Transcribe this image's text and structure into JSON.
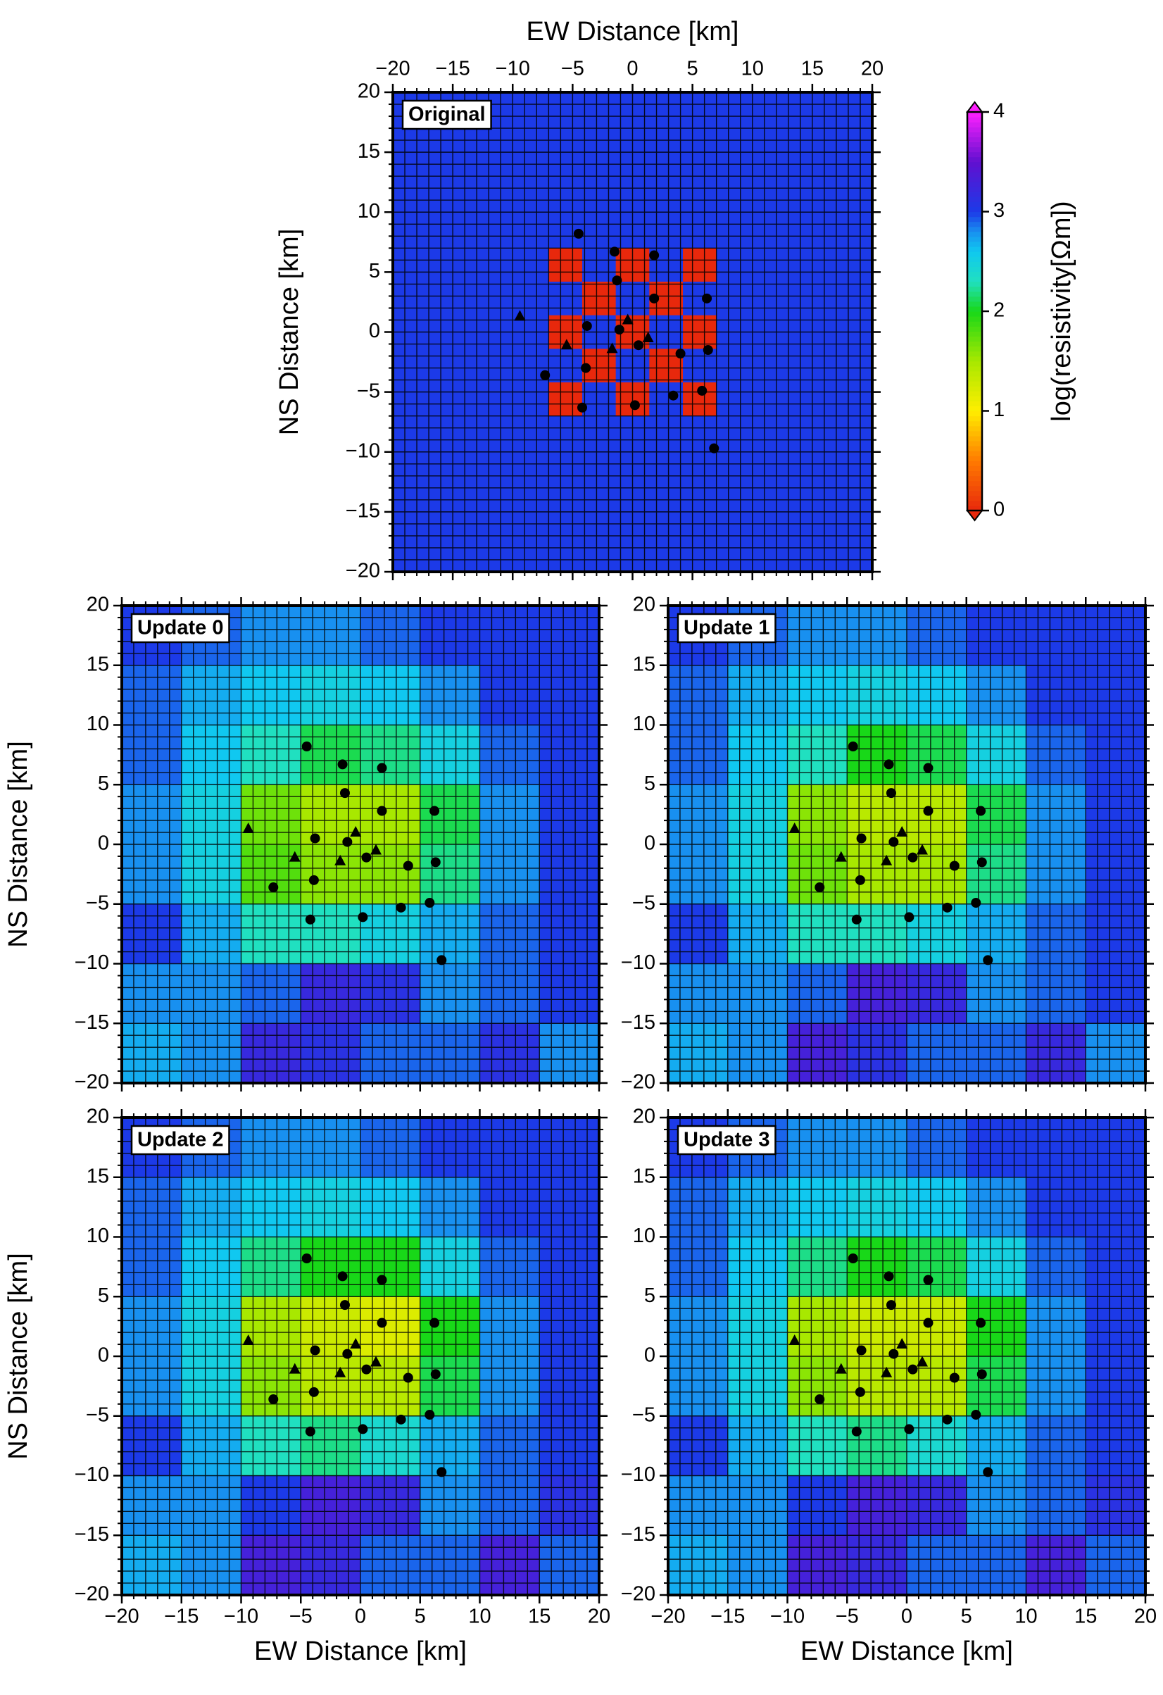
{
  "chart_data": [
    {
      "type": "heatmap",
      "title": "Original",
      "xlabel": "EW Distance [km]",
      "ylabel": "NS Distance [km]",
      "xlabel_side": "top",
      "xtick_labels": "top",
      "xlim": [
        -20,
        20
      ],
      "ylim": [
        -20,
        20
      ],
      "xticks": [
        {
          "value": -20,
          "label": "−20"
        },
        {
          "value": -15,
          "label": "−15"
        },
        {
          "value": -10,
          "label": "−10"
        },
        {
          "value": -5,
          "label": "−5"
        },
        0,
        5,
        10,
        15,
        20
      ],
      "yticks": [
        {
          "value": -20,
          "label": "−20"
        },
        {
          "value": -15,
          "label": "−15"
        },
        {
          "value": -10,
          "label": "−10"
        },
        {
          "value": -5,
          "label": "−5"
        },
        0,
        5,
        10,
        15,
        20
      ],
      "xbins": [
        -20,
        -7,
        -4.2,
        -1.4,
        1.4,
        4.2,
        7,
        20
      ],
      "ybins": [
        20,
        7,
        4.2,
        1.4,
        -1.4,
        -4.2,
        -7,
        -20
      ],
      "values": [
        [
          3,
          3,
          3,
          3,
          3,
          3,
          3
        ],
        [
          3,
          0,
          3,
          0,
          3,
          0,
          3
        ],
        [
          3,
          3,
          0,
          3,
          0,
          3,
          3
        ],
        [
          3,
          0,
          3,
          0,
          3,
          0,
          3
        ],
        [
          3,
          3,
          0,
          3,
          0,
          3,
          3
        ],
        [
          3,
          0,
          3,
          0,
          3,
          0,
          3
        ],
        [
          3,
          3,
          3,
          3,
          3,
          3,
          3
        ]
      ],
      "stations": {
        "circles": {
          "x": [
            -4.5,
            -1.5,
            1.8,
            -1.3,
            1.8,
            6.2,
            -3.8,
            -1.1,
            0.5,
            4.0,
            6.3,
            -3.9,
            -7.3,
            3.4,
            5.8,
            -4.2,
            0.2,
            6.8
          ],
          "y": [
            8.2,
            6.7,
            6.4,
            4.3,
            2.8,
            2.8,
            0.5,
            0.2,
            -1.1,
            -1.8,
            -1.5,
            -3.0,
            -3.6,
            -5.3,
            -4.9,
            -6.3,
            -6.1,
            -9.7
          ]
        },
        "triangles": {
          "x": [
            -9.4,
            -5.5,
            -1.7,
            -0.4,
            1.3
          ],
          "y": [
            1.3,
            -1.1,
            -1.4,
            1.0,
            -0.5
          ]
        }
      },
      "colorbar": {
        "label": "log(resistivity[Ωm])",
        "lim": [
          0,
          4
        ],
        "ticks": [
          0,
          1,
          2,
          3,
          4
        ],
        "stops": [
          0,
          0.5,
          1,
          1.5,
          2,
          2.3,
          2.6,
          2.8,
          3,
          3.5,
          4
        ],
        "colors": [
          "#e8280c",
          "#ff7a00",
          "#ffee00",
          "#a8e800",
          "#18d818",
          "#20e0c0",
          "#10c8f0",
          "#1890f0",
          "#1c3ae8",
          "#6010d0",
          "#ff20ff"
        ]
      }
    },
    {
      "type": "heatmap",
      "title": "Update 0",
      "ylabel": "NS Distance [km]",
      "xlabel_side": "none",
      "xtick_labels": "none",
      "xlim": [
        -20,
        20
      ],
      "ylim": [
        -20,
        20
      ],
      "xticks": [
        -20,
        -15,
        -10,
        -5,
        0,
        5,
        10,
        15,
        20
      ],
      "yticks": [
        {
          "value": -20,
          "label": "−20"
        },
        {
          "value": -15,
          "label": "−15"
        },
        {
          "value": -10,
          "label": "−10"
        },
        {
          "value": -5,
          "label": "−5"
        },
        0,
        5,
        10,
        15,
        20
      ],
      "xbins": [
        -20,
        -15,
        -10,
        -5,
        0,
        5,
        10,
        15,
        20
      ],
      "ybins": [
        20,
        15,
        10,
        5,
        0,
        -5,
        -10,
        -15,
        -20
      ],
      "values": [
        [
          3.0,
          2.9,
          2.8,
          2.8,
          2.9,
          3.0,
          3.0,
          3.0
        ],
        [
          2.9,
          2.7,
          2.6,
          2.5,
          2.6,
          2.8,
          3.0,
          3.0
        ],
        [
          2.9,
          2.6,
          2.3,
          2.1,
          2.2,
          2.5,
          2.9,
          3.0
        ],
        [
          2.8,
          2.5,
          1.7,
          1.5,
          1.5,
          2.1,
          2.8,
          3.0
        ],
        [
          2.8,
          2.5,
          1.8,
          1.6,
          1.6,
          2.2,
          2.8,
          3.0
        ],
        [
          3.0,
          2.7,
          2.3,
          2.3,
          2.5,
          2.7,
          2.9,
          3.0
        ],
        [
          2.8,
          2.8,
          2.9,
          3.2,
          3.1,
          2.8,
          2.9,
          3.0
        ],
        [
          2.7,
          2.8,
          3.2,
          3.1,
          2.9,
          2.9,
          3.1,
          2.8
        ]
      ],
      "stations": {
        "circles": {
          "x": [
            -4.5,
            -1.5,
            1.8,
            -1.3,
            1.8,
            6.2,
            -3.8,
            -1.1,
            0.5,
            4.0,
            6.3,
            -3.9,
            -7.3,
            3.4,
            5.8,
            -4.2,
            0.2,
            6.8
          ],
          "y": [
            8.2,
            6.7,
            6.4,
            4.3,
            2.8,
            2.8,
            0.5,
            0.2,
            -1.1,
            -1.8,
            -1.5,
            -3.0,
            -3.6,
            -5.3,
            -4.9,
            -6.3,
            -6.1,
            -9.7
          ]
        },
        "triangles": {
          "x": [
            -9.4,
            -5.5,
            -1.7,
            -0.4,
            1.3
          ],
          "y": [
            1.3,
            -1.1,
            -1.4,
            1.0,
            -0.5
          ]
        }
      }
    },
    {
      "type": "heatmap",
      "title": "Update 1",
      "xlabel_side": "none",
      "xtick_labels": "none",
      "xlim": [
        -20,
        20
      ],
      "ylim": [
        -20,
        20
      ],
      "xticks": [
        -20,
        -15,
        -10,
        -5,
        0,
        5,
        10,
        15,
        20
      ],
      "yticks": [
        {
          "value": -20,
          "label": "−20"
        },
        {
          "value": -15,
          "label": "−15"
        },
        {
          "value": -10,
          "label": "−10"
        },
        {
          "value": -5,
          "label": "−5"
        },
        0,
        5,
        10,
        15,
        20
      ],
      "xbins": [
        -20,
        -15,
        -10,
        -5,
        0,
        5,
        10,
        15,
        20
      ],
      "ybins": [
        20,
        15,
        10,
        5,
        0,
        -5,
        -10,
        -15,
        -20
      ],
      "values": [
        [
          3.0,
          2.9,
          2.8,
          2.8,
          2.9,
          3.0,
          3.0,
          3.0
        ],
        [
          2.9,
          2.7,
          2.6,
          2.5,
          2.6,
          2.8,
          3.0,
          3.0
        ],
        [
          2.9,
          2.6,
          2.3,
          2.0,
          2.1,
          2.5,
          2.9,
          3.0
        ],
        [
          2.8,
          2.5,
          1.6,
          1.4,
          1.4,
          2.1,
          2.8,
          3.0
        ],
        [
          2.8,
          2.5,
          1.7,
          1.5,
          1.5,
          2.2,
          2.8,
          3.0
        ],
        [
          3.0,
          2.7,
          2.3,
          2.3,
          2.5,
          2.7,
          2.9,
          3.0
        ],
        [
          2.8,
          2.8,
          2.9,
          3.3,
          3.2,
          2.8,
          2.9,
          3.0
        ],
        [
          2.7,
          2.8,
          3.3,
          3.1,
          2.9,
          2.9,
          3.2,
          2.8
        ]
      ],
      "stations": {
        "circles": {
          "x": [
            -4.5,
            -1.5,
            1.8,
            -1.3,
            1.8,
            6.2,
            -3.8,
            -1.1,
            0.5,
            4.0,
            6.3,
            -3.9,
            -7.3,
            3.4,
            5.8,
            -4.2,
            0.2,
            6.8
          ],
          "y": [
            8.2,
            6.7,
            6.4,
            4.3,
            2.8,
            2.8,
            0.5,
            0.2,
            -1.1,
            -1.8,
            -1.5,
            -3.0,
            -3.6,
            -5.3,
            -4.9,
            -6.3,
            -6.1,
            -9.7
          ]
        },
        "triangles": {
          "x": [
            -9.4,
            -5.5,
            -1.7,
            -0.4,
            1.3
          ],
          "y": [
            1.3,
            -1.1,
            -1.4,
            1.0,
            -0.5
          ]
        }
      }
    },
    {
      "type": "heatmap",
      "title": "Update 2",
      "xlabel": "EW Distance [km]",
      "ylabel": "NS Distance [km]",
      "xlabel_side": "bottom",
      "xtick_labels": "bottom",
      "xlim": [
        -20,
        20
      ],
      "ylim": [
        -20,
        20
      ],
      "xticks": [
        {
          "value": -20,
          "label": "−20"
        },
        {
          "value": -15,
          "label": "−15"
        },
        {
          "value": -10,
          "label": "−10"
        },
        {
          "value": -5,
          "label": "−5"
        },
        0,
        5,
        10,
        15,
        20
      ],
      "yticks": [
        {
          "value": -20,
          "label": "−20"
        },
        {
          "value": -15,
          "label": "−15"
        },
        {
          "value": -10,
          "label": "−10"
        },
        {
          "value": -5,
          "label": "−5"
        },
        0,
        5,
        10,
        15,
        20
      ],
      "xbins": [
        -20,
        -15,
        -10,
        -5,
        0,
        5,
        10,
        15,
        20
      ],
      "ybins": [
        20,
        15,
        10,
        5,
        0,
        -5,
        -10,
        -15,
        -20
      ],
      "values": [
        [
          3.0,
          2.9,
          2.8,
          2.8,
          2.9,
          3.0,
          3.0,
          3.0
        ],
        [
          2.9,
          2.7,
          2.6,
          2.5,
          2.6,
          2.8,
          3.0,
          3.0
        ],
        [
          2.9,
          2.6,
          2.2,
          2.0,
          2.0,
          2.5,
          2.9,
          3.0
        ],
        [
          2.8,
          2.5,
          1.5,
          1.3,
          1.2,
          2.0,
          2.8,
          3.0
        ],
        [
          2.8,
          2.5,
          1.6,
          1.4,
          1.4,
          2.1,
          2.8,
          3.0
        ],
        [
          3.0,
          2.7,
          2.3,
          2.2,
          2.4,
          2.7,
          2.9,
          3.0
        ],
        [
          2.8,
          2.8,
          3.0,
          3.3,
          3.2,
          2.8,
          2.9,
          3.1
        ],
        [
          2.7,
          2.8,
          3.3,
          3.2,
          2.9,
          2.9,
          3.3,
          2.9
        ]
      ],
      "stations": {
        "circles": {
          "x": [
            -4.5,
            -1.5,
            1.8,
            -1.3,
            1.8,
            6.2,
            -3.8,
            -1.1,
            0.5,
            4.0,
            6.3,
            -3.9,
            -7.3,
            3.4,
            5.8,
            -4.2,
            0.2,
            6.8
          ],
          "y": [
            8.2,
            6.7,
            6.4,
            4.3,
            2.8,
            2.8,
            0.5,
            0.2,
            -1.1,
            -1.8,
            -1.5,
            -3.0,
            -3.6,
            -5.3,
            -4.9,
            -6.3,
            -6.1,
            -9.7
          ]
        },
        "triangles": {
          "x": [
            -9.4,
            -5.5,
            -1.7,
            -0.4,
            1.3
          ],
          "y": [
            1.3,
            -1.1,
            -1.4,
            1.0,
            -0.5
          ]
        }
      }
    },
    {
      "type": "heatmap",
      "title": "Update 3",
      "xlabel": "EW Distance [km]",
      "xlabel_side": "bottom",
      "xtick_labels": "bottom",
      "xlim": [
        -20,
        20
      ],
      "ylim": [
        -20,
        20
      ],
      "xticks": [
        {
          "value": -20,
          "label": "−20"
        },
        {
          "value": -15,
          "label": "−15"
        },
        {
          "value": -10,
          "label": "−10"
        },
        {
          "value": -5,
          "label": "−5"
        },
        0,
        5,
        10,
        15,
        20
      ],
      "yticks": [
        {
          "value": -20,
          "label": "−20"
        },
        {
          "value": -15,
          "label": "−15"
        },
        {
          "value": -10,
          "label": "−10"
        },
        {
          "value": -5,
          "label": "−5"
        },
        0,
        5,
        10,
        15,
        20
      ],
      "xbins": [
        -20,
        -15,
        -10,
        -5,
        0,
        5,
        10,
        15,
        20
      ],
      "ybins": [
        20,
        15,
        10,
        5,
        0,
        -5,
        -10,
        -15,
        -20
      ],
      "values": [
        [
          3.0,
          2.9,
          2.8,
          2.8,
          2.9,
          3.0,
          3.0,
          3.0
        ],
        [
          2.9,
          2.7,
          2.6,
          2.5,
          2.6,
          2.8,
          3.0,
          3.0
        ],
        [
          2.9,
          2.6,
          2.2,
          2.0,
          2.1,
          2.5,
          2.9,
          3.0
        ],
        [
          2.8,
          2.5,
          1.5,
          1.3,
          1.3,
          2.0,
          2.8,
          3.0
        ],
        [
          2.8,
          2.5,
          1.6,
          1.4,
          1.4,
          2.1,
          2.8,
          3.0
        ],
        [
          3.0,
          2.7,
          2.3,
          2.2,
          2.4,
          2.7,
          2.9,
          3.0
        ],
        [
          2.8,
          2.8,
          3.0,
          3.3,
          3.2,
          2.8,
          2.9,
          3.1
        ],
        [
          2.7,
          2.8,
          3.3,
          3.2,
          2.9,
          2.9,
          3.3,
          2.9
        ]
      ],
      "stations": {
        "circles": {
          "x": [
            -4.5,
            -1.5,
            1.8,
            -1.3,
            1.8,
            6.2,
            -3.8,
            -1.1,
            0.5,
            4.0,
            6.3,
            -3.9,
            -7.3,
            3.4,
            5.8,
            -4.2,
            0.2,
            6.8
          ],
          "y": [
            8.2,
            6.7,
            6.4,
            4.3,
            2.8,
            2.8,
            0.5,
            0.2,
            -1.1,
            -1.8,
            -1.5,
            -3.0,
            -3.6,
            -5.3,
            -4.9,
            -6.3,
            -6.1,
            -9.7
          ]
        },
        "triangles": {
          "x": [
            -9.4,
            -5.5,
            -1.7,
            -0.4,
            1.3
          ],
          "y": [
            1.3,
            -1.1,
            -1.4,
            1.0,
            -0.5
          ]
        }
      }
    }
  ]
}
